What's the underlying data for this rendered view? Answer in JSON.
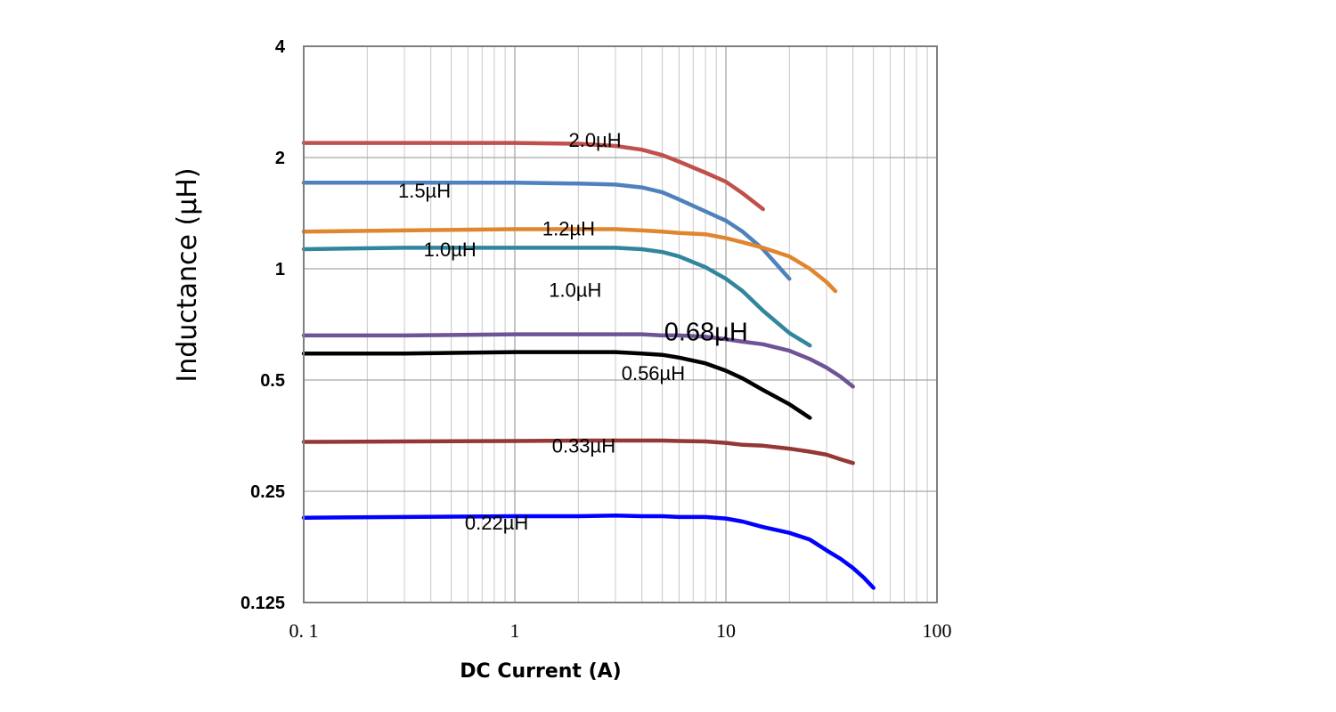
{
  "chart_data": {
    "type": "line",
    "xlabel": "DC Current (A)",
    "ylabel": "Inductance (µH)",
    "x_scale": "log",
    "y_scale": "log2",
    "xlim": [
      0.1,
      100
    ],
    "ylim": [
      0.125,
      4
    ],
    "x_ticks": [
      "0. 1",
      "1",
      "10",
      "100"
    ],
    "y_ticks": [
      "4",
      "2",
      "1",
      "0.5",
      "0.25",
      "0.125"
    ],
    "grid": true,
    "series": [
      {
        "name": "2.0µH",
        "color": "#c0504d",
        "x": [
          0.1,
          0.3,
          1,
          2,
          3,
          4,
          5,
          6,
          8,
          10,
          12,
          15
        ],
        "y": [
          2.19,
          2.19,
          2.19,
          2.18,
          2.15,
          2.1,
          2.03,
          1.95,
          1.82,
          1.72,
          1.6,
          1.45
        ]
      },
      {
        "name": "1.5µH",
        "color": "#4f81bd",
        "x": [
          0.1,
          0.3,
          1,
          2,
          3,
          4,
          5,
          6,
          8,
          10,
          12,
          15,
          20
        ],
        "y": [
          1.71,
          1.71,
          1.71,
          1.7,
          1.69,
          1.66,
          1.61,
          1.54,
          1.43,
          1.35,
          1.26,
          1.13,
          0.94
        ]
      },
      {
        "name": "1.2µH",
        "color": "#e0862f",
        "x": [
          0.1,
          0.3,
          1,
          2,
          3,
          4,
          5,
          6,
          8,
          10,
          12,
          15,
          20,
          25,
          30,
          33
        ],
        "y": [
          1.26,
          1.27,
          1.28,
          1.28,
          1.28,
          1.27,
          1.26,
          1.25,
          1.24,
          1.21,
          1.18,
          1.14,
          1.08,
          1.0,
          0.92,
          0.87
        ]
      },
      {
        "name": "1.0µH",
        "color": "#31859c",
        "x": [
          0.1,
          0.3,
          1,
          2,
          3,
          4,
          5,
          6,
          8,
          10,
          12,
          15,
          20,
          25
        ],
        "y": [
          1.13,
          1.14,
          1.14,
          1.14,
          1.14,
          1.13,
          1.11,
          1.08,
          1.01,
          0.94,
          0.87,
          0.77,
          0.67,
          0.62
        ]
      },
      {
        "name": "0.68µH",
        "color": "#6e5496",
        "x": [
          0.1,
          0.3,
          1,
          2,
          3,
          4,
          5,
          6,
          8,
          10,
          12,
          15,
          20,
          25,
          30,
          35,
          40
        ],
        "y": [
          0.66,
          0.66,
          0.665,
          0.665,
          0.665,
          0.665,
          0.66,
          0.66,
          0.655,
          0.645,
          0.635,
          0.625,
          0.6,
          0.57,
          0.54,
          0.51,
          0.48
        ]
      },
      {
        "name": "0.56µH",
        "color": "#000000",
        "x": [
          0.1,
          0.3,
          1,
          2,
          3,
          4,
          5,
          6,
          8,
          10,
          12,
          15,
          20,
          25
        ],
        "y": [
          0.59,
          0.59,
          0.595,
          0.595,
          0.595,
          0.59,
          0.585,
          0.575,
          0.555,
          0.53,
          0.505,
          0.47,
          0.43,
          0.395
        ]
      },
      {
        "name": "0.33µH",
        "color": "#953735",
        "x": [
          0.1,
          0.3,
          1,
          2,
          3,
          4,
          5,
          6,
          8,
          10,
          12,
          15,
          20,
          25,
          30,
          35,
          40
        ],
        "y": [
          0.34,
          0.341,
          0.342,
          0.343,
          0.343,
          0.343,
          0.343,
          0.342,
          0.341,
          0.338,
          0.334,
          0.332,
          0.326,
          0.32,
          0.314,
          0.305,
          0.298
        ]
      },
      {
        "name": "0.22µH",
        "color": "#0000ff",
        "x": [
          0.1,
          0.3,
          1,
          2,
          3,
          4,
          5,
          6,
          8,
          10,
          12,
          15,
          20,
          25,
          30,
          35,
          40,
          45,
          50
        ],
        "y": [
          0.212,
          0.213,
          0.214,
          0.214,
          0.215,
          0.214,
          0.214,
          0.213,
          0.213,
          0.211,
          0.207,
          0.2,
          0.193,
          0.185,
          0.173,
          0.164,
          0.155,
          0.146,
          0.137
        ]
      }
    ],
    "annotations": [
      {
        "text": "2.0µH",
        "x": 1.8,
        "y": 2.14
      },
      {
        "text": "1.5µH",
        "x": 0.28,
        "y": 1.56
      },
      {
        "text": "1.2µH",
        "x": 1.35,
        "y": 1.23
      },
      {
        "text": "1.0µH",
        "x": 0.37,
        "y": 1.08
      },
      {
        "text": "1.0µH",
        "x": 1.45,
        "y": 0.84
      },
      {
        "text": "0.68µH",
        "x": 5.1,
        "y": 0.64,
        "big": true
      },
      {
        "text": "0.56µH",
        "x": 3.2,
        "y": 0.5
      },
      {
        "text": "0.33µH",
        "x": 1.5,
        "y": 0.318
      },
      {
        "text": "0.22µH",
        "x": 0.58,
        "y": 0.197
      }
    ]
  }
}
